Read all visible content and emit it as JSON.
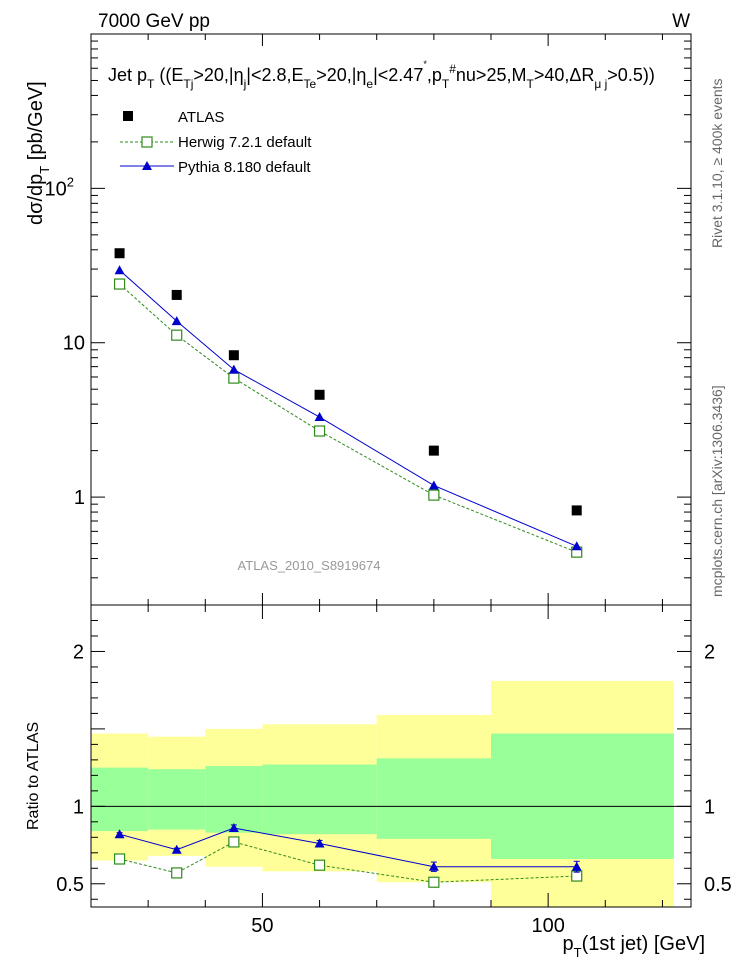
{
  "header": {
    "energy": "7000 GeV pp",
    "process": "W"
  },
  "side_labels": {
    "rivet": "Rivet 3.1.10, ≥ 400k events",
    "mcplots": "mcplots.cern.ch [arXiv:1306.3436]"
  },
  "chart_data": [
    {
      "type": "scatter",
      "title": "Jet p_T ((E_Tj>20,|η_j|<2.8,E_Te>20,|η_e|<2.47^*,p_T^#nu>25,M_T>40,ΔR_μj>0.5))",
      "title_parts": {
        "jet": "Jet p",
        "t": "T",
        "open": " ((E",
        "tj": "Tj",
        "c1": ">20,|η",
        "j": "j",
        "c2": "|<2.8,E",
        "te": "Te",
        "c3": ">20,|η",
        "e": "e",
        "c4": "|<2.47",
        "star": "*",
        "c5": ",p",
        "nu_t": "T",
        "nu_sup": "#",
        "c6": "nu>25,M",
        "mt": "T",
        "c7": ">40,ΔR",
        "muj": "μ j",
        "c8": ">0.5))"
      },
      "ylabel": "dσ/dp_T [pb/GeV]",
      "ylabel_parts": {
        "main": "dσ/dp",
        "sub": "T",
        "unit": " [pb/GeV]"
      },
      "yscale": "log",
      "ylim": [
        0.2,
        1000
      ],
      "xlim": [
        20,
        125
      ],
      "yticks": [
        {
          "value": 1,
          "label": "1"
        },
        {
          "value": 10,
          "label": "10"
        },
        {
          "value": 100,
          "label": "10",
          "sup": "2"
        }
      ],
      "watermark": "ATLAS_2010_S8919674",
      "legend_position": "top-left",
      "series": [
        {
          "name": "ATLAS",
          "marker": "filled-square",
          "color": "#000000",
          "x": [
            25,
            35,
            45,
            60,
            80,
            105
          ],
          "y": [
            38,
            20.4,
            8.3,
            4.6,
            2.0,
            0.82
          ]
        },
        {
          "name": "Herwig 7.2.1 default",
          "marker": "open-square",
          "line": "dashed",
          "color": "#2e8b1c",
          "x": [
            25,
            35,
            45,
            60,
            80,
            105
          ],
          "y": [
            24,
            11.2,
            5.9,
            2.68,
            1.03,
            0.44
          ]
        },
        {
          "name": "Pythia 8.180 default",
          "marker": "triangle",
          "line": "solid",
          "color": "#0000cc",
          "x": [
            25,
            35,
            45,
            60,
            80,
            105
          ],
          "y": [
            29.5,
            13.8,
            6.7,
            3.3,
            1.19,
            0.48
          ]
        }
      ]
    },
    {
      "type": "scatter",
      "ylabel": "Ratio to ATLAS",
      "xlabel": "p_T(1st jet) [GeV]",
      "xlabel_parts": {
        "main": "p",
        "sub": "T",
        "rest": "(1st jet) [GeV]"
      },
      "ylim": [
        0.35,
        2.3
      ],
      "xlim": [
        20,
        125
      ],
      "yticks": [
        {
          "value": 0.5,
          "label": "0.5"
        },
        {
          "value": 1,
          "label": "1"
        },
        {
          "value": 2,
          "label": "2"
        }
      ],
      "xticks": [
        {
          "value": 50,
          "label": "50"
        },
        {
          "value": 100,
          "label": "100"
        }
      ],
      "reference_line": 1,
      "bands": [
        {
          "x0": 20,
          "x1": 30,
          "yellow": [
            0.65,
            1.47
          ],
          "green": [
            0.84,
            1.25
          ]
        },
        {
          "x0": 30,
          "x1": 40,
          "yellow": [
            0.68,
            1.45
          ],
          "green": [
            0.85,
            1.24
          ]
        },
        {
          "x0": 40,
          "x1": 50,
          "yellow": [
            0.61,
            1.5
          ],
          "green": [
            0.83,
            1.26
          ]
        },
        {
          "x0": 50,
          "x1": 70,
          "yellow": [
            0.58,
            1.53
          ],
          "green": [
            0.82,
            1.27
          ]
        },
        {
          "x0": 70,
          "x1": 90,
          "yellow": [
            0.51,
            1.59
          ],
          "green": [
            0.79,
            1.31
          ]
        },
        {
          "x0": 90,
          "x1": 122,
          "yellow": [
            0.35,
            1.81
          ],
          "green": [
            0.66,
            1.47
          ]
        }
      ],
      "series": [
        {
          "name": "Herwig 7.2.1 default",
          "marker": "open-square",
          "line": "dashed",
          "color": "#2e8b1c",
          "x": [
            25,
            35,
            45,
            60,
            80,
            105
          ],
          "y": [
            0.66,
            0.57,
            0.77,
            0.62,
            0.51,
            0.55
          ],
          "err": [
            0.01,
            0.01,
            0.015,
            0.015,
            0.02,
            0.03
          ]
        },
        {
          "name": "Pythia 8.180 default",
          "marker": "triangle",
          "line": "solid",
          "color": "#0000cc",
          "x": [
            25,
            35,
            45,
            60,
            80,
            105
          ],
          "y": [
            0.82,
            0.72,
            0.86,
            0.76,
            0.61,
            0.61
          ],
          "err": [
            0.01,
            0.01,
            0.02,
            0.02,
            0.03,
            0.035
          ]
        }
      ]
    }
  ]
}
